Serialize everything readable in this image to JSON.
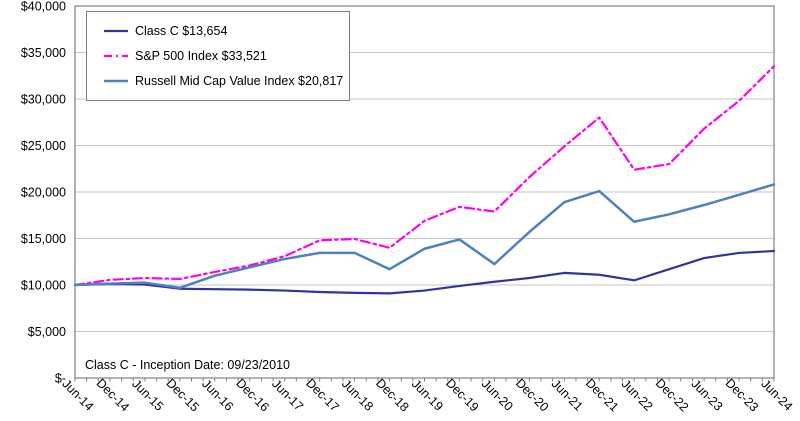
{
  "chart_data": {
    "type": "line",
    "title": "",
    "xlabel": "",
    "ylabel": "",
    "grid": "horizontal",
    "legend_position": "top-left",
    "annotation": "Class C - Inception Date: 09/23/2010",
    "ylim": [
      0,
      40000
    ],
    "y_ticks": [
      "$-",
      "$5,000",
      "$10,000",
      "$15,000",
      "$20,000",
      "$25,000",
      "$30,000",
      "$35,000",
      "$40,000"
    ],
    "y_tick_values": [
      0,
      5000,
      10000,
      15000,
      20000,
      25000,
      30000,
      35000,
      40000
    ],
    "categories": [
      "Jun-14",
      "Dec-14",
      "Jun-15",
      "Dec-15",
      "Jun-16",
      "Dec-16",
      "Jun-17",
      "Dec-17",
      "Jun-18",
      "Dec-18",
      "Jun-19",
      "Dec-19",
      "Jun-20",
      "Dec-20",
      "Jun-21",
      "Dec-21",
      "Jun-22",
      "Dec-22",
      "Jun-23",
      "Dec-23",
      "Jun-24"
    ],
    "series": [
      {
        "id": "class-c",
        "name": "Class C $13,654",
        "final_value": "$13,654",
        "color": "#333399",
        "dash": "solid",
        "width": 2.2,
        "values": [
          10000,
          10100,
          10050,
          9600,
          9550,
          9500,
          9400,
          9250,
          9150,
          9100,
          9400,
          9900,
          10350,
          10750,
          11300,
          11100,
          10500,
          11700,
          12900,
          13450,
          13654
        ]
      },
      {
        "id": "sp500",
        "name": "S&P 500 Index $33,521",
        "final_value": "$33,521",
        "color": "#FF00EE",
        "dash": "dash-dot",
        "width": 2.2,
        "values": [
          10000,
          10550,
          10750,
          10650,
          11400,
          12100,
          13100,
          14800,
          14950,
          14000,
          16900,
          18400,
          17900,
          21600,
          24900,
          28000,
          22400,
          23000,
          26800,
          29800,
          33521
        ]
      },
      {
        "id": "russell",
        "name": "Russell Mid Cap Value Index $20,817",
        "final_value": "$20,817",
        "color": "#4F81BD",
        "dash": "solid",
        "width": 2.5,
        "values": [
          10000,
          10150,
          10250,
          9700,
          11000,
          11900,
          12800,
          13450,
          13450,
          11700,
          13900,
          14900,
          12250,
          15700,
          18900,
          20100,
          16800,
          17600,
          18600,
          19700,
          20817
        ]
      }
    ],
    "colors": {
      "gridline": "#C6C6C6",
      "plot_border": "#808080",
      "tick": "#808080"
    }
  }
}
